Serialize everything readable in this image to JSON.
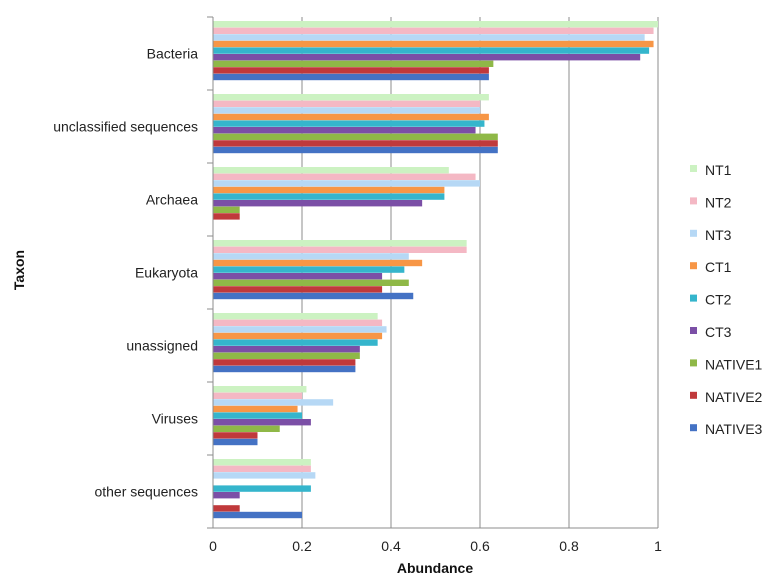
{
  "chart_data": {
    "type": "bar",
    "orientation": "horizontal",
    "title": "",
    "xlabel": "Abundance",
    "ylabel": "Taxon",
    "xlim": [
      0,
      1
    ],
    "xticks": [
      "0",
      "0.2",
      "0.4",
      "0.6",
      "0.8",
      "1"
    ],
    "grid": true,
    "legend_position": "right",
    "categories": [
      "Bacteria",
      "unclassified sequences",
      "Archaea",
      "Eukaryota",
      "unassigned",
      "Viruses",
      "other sequences"
    ],
    "series": [
      {
        "name": "NT1",
        "color": "#ccf2c2",
        "values": [
          1.0,
          0.62,
          0.53,
          0.57,
          0.37,
          0.21,
          0.22
        ]
      },
      {
        "name": "NT2",
        "color": "#f4b8c4",
        "values": [
          0.99,
          0.6,
          0.59,
          0.57,
          0.38,
          0.2,
          0.22
        ]
      },
      {
        "name": "NT3",
        "color": "#b6d8f5",
        "values": [
          0.97,
          0.6,
          0.6,
          0.44,
          0.39,
          0.27,
          0.23
        ]
      },
      {
        "name": "CT1",
        "color": "#f79646",
        "values": [
          0.99,
          0.62,
          0.52,
          0.47,
          0.38,
          0.19,
          0.0
        ]
      },
      {
        "name": "CT2",
        "color": "#35b5cc",
        "values": [
          0.98,
          0.61,
          0.52,
          0.43,
          0.37,
          0.2,
          0.22
        ]
      },
      {
        "name": "CT3",
        "color": "#7b4fa6",
        "values": [
          0.96,
          0.59,
          0.47,
          0.38,
          0.33,
          0.22,
          0.06
        ]
      },
      {
        "name": "NATIVE1",
        "color": "#8fb847",
        "values": [
          0.63,
          0.64,
          0.06,
          0.44,
          0.33,
          0.15,
          0.0
        ]
      },
      {
        "name": "NATIVE2",
        "color": "#c0393b",
        "values": [
          0.62,
          0.64,
          0.06,
          0.38,
          0.32,
          0.1,
          0.06
        ]
      },
      {
        "name": "NATIVE3",
        "color": "#4472c4",
        "values": [
          0.62,
          0.64,
          0.0,
          0.45,
          0.32,
          0.1,
          0.2
        ]
      }
    ]
  }
}
